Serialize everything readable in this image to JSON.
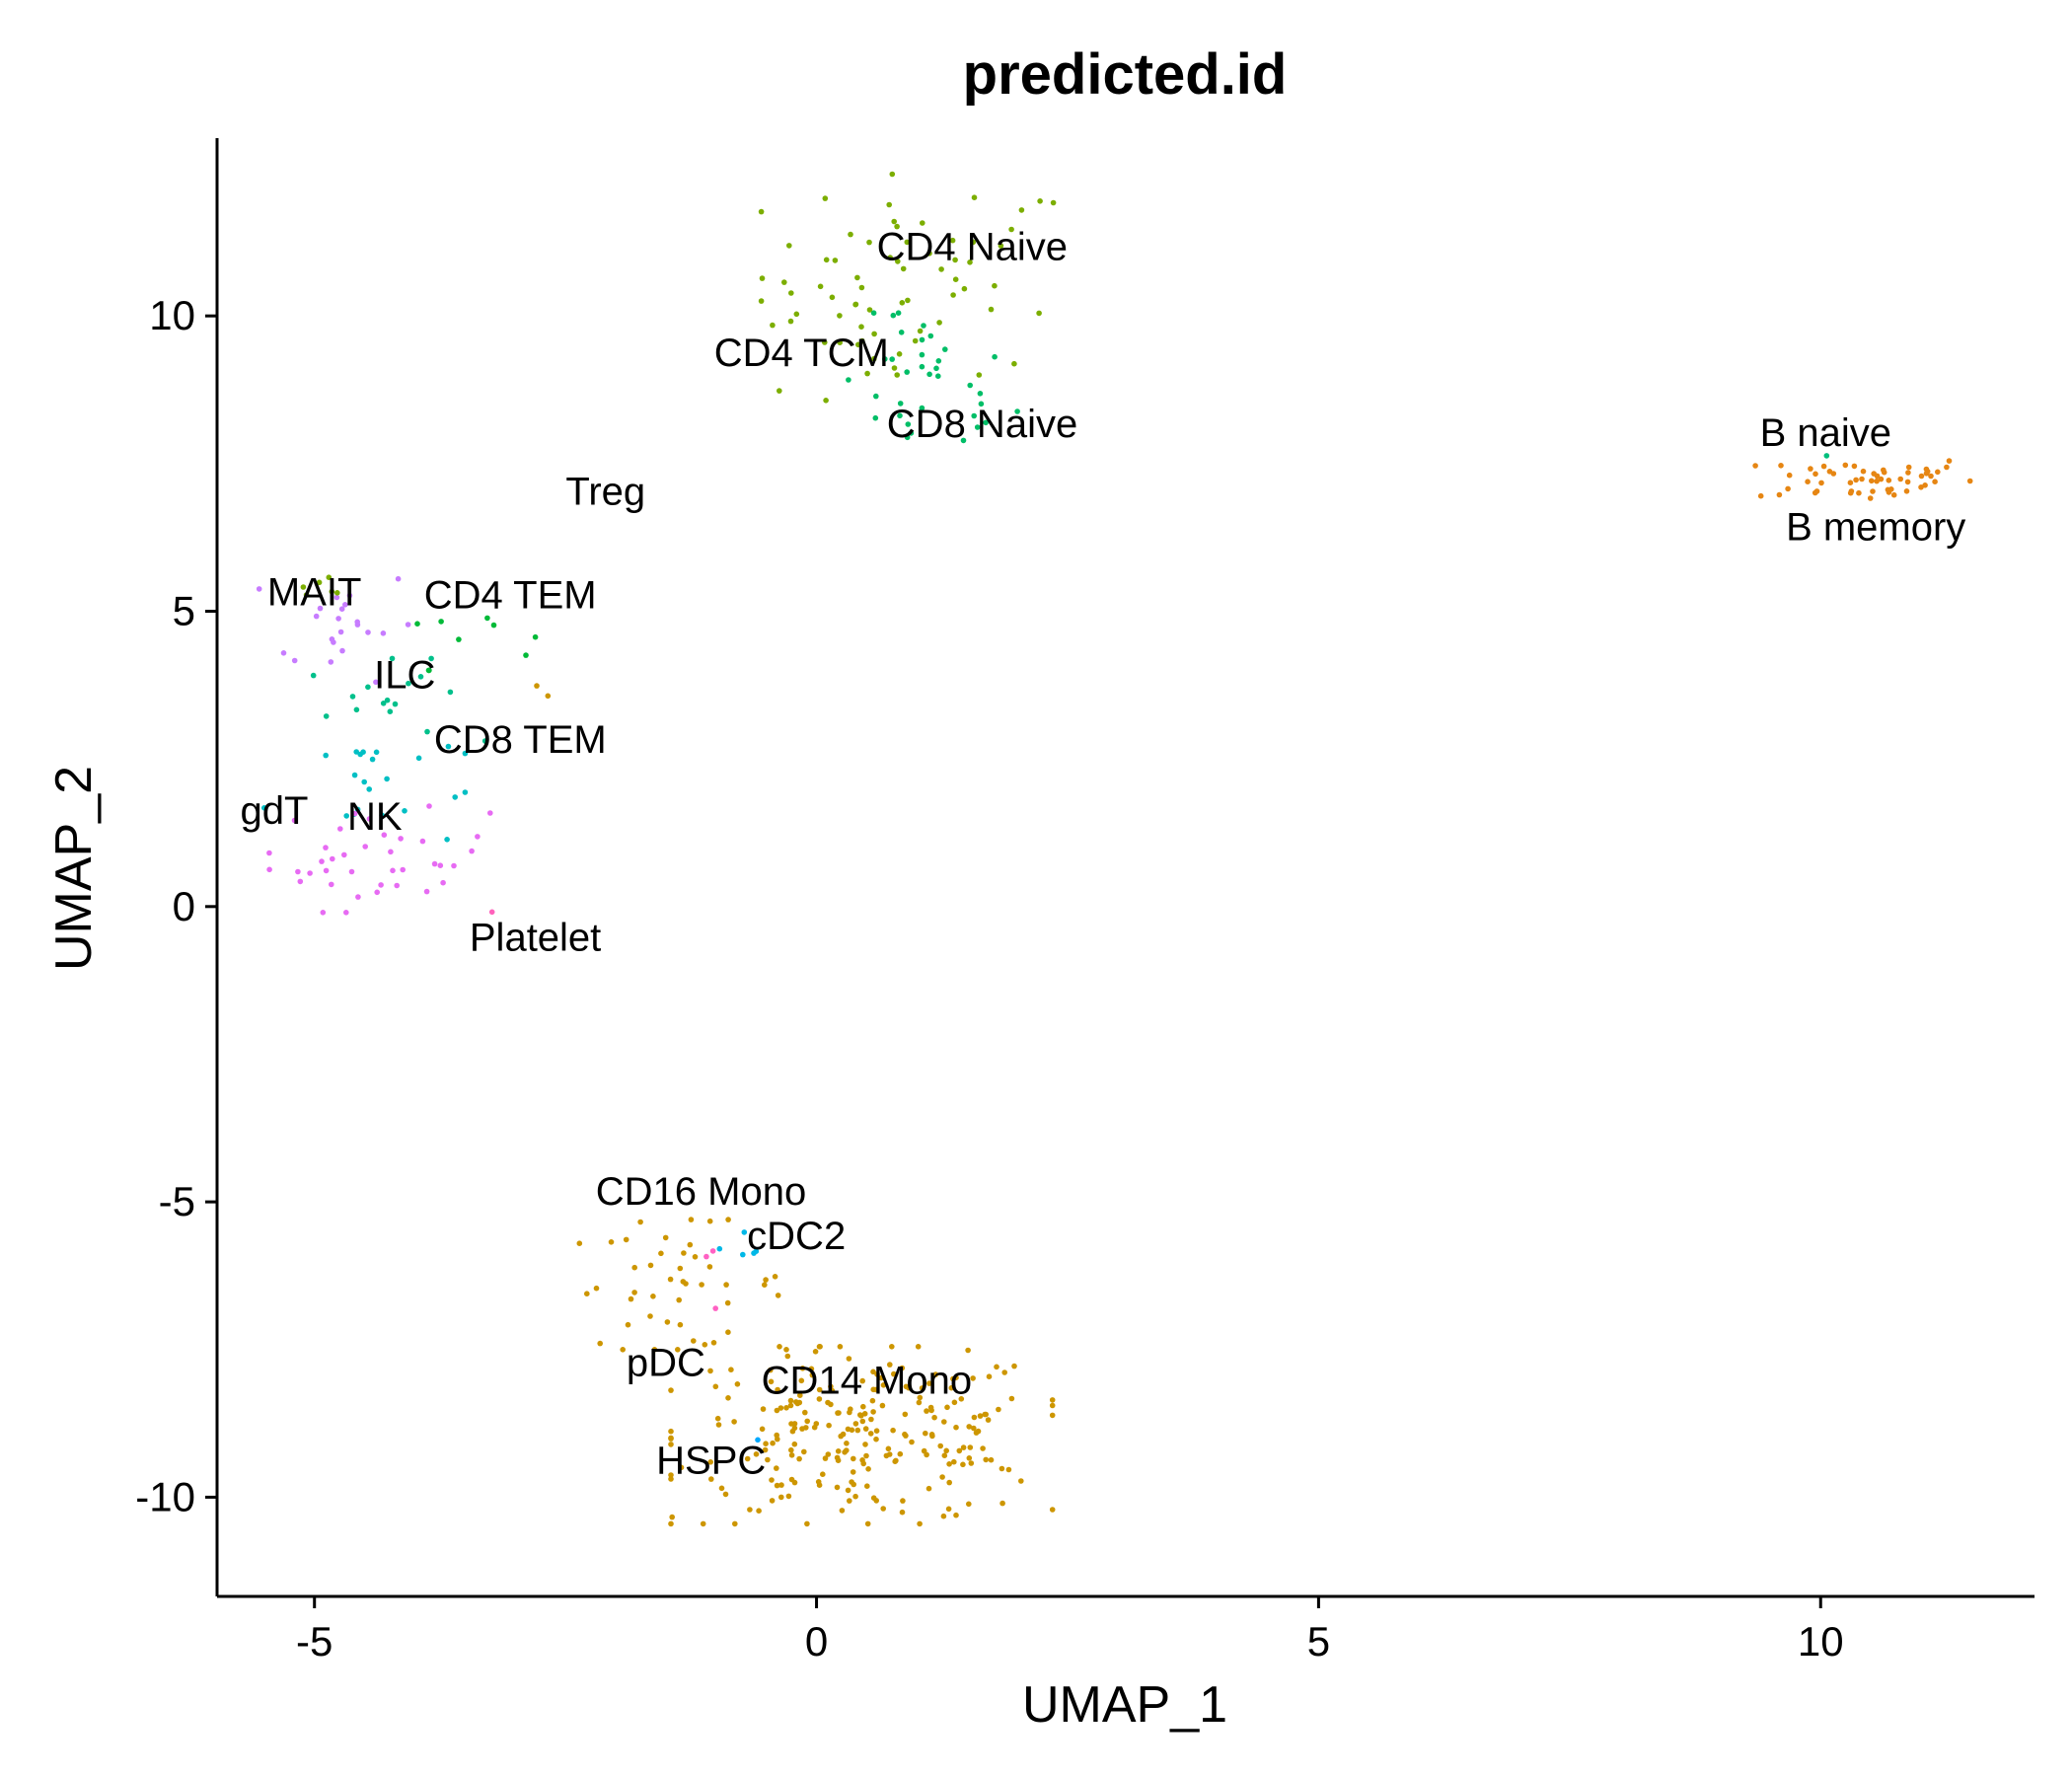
{
  "chart_data": {
    "type": "scatter",
    "title": "predicted.id",
    "xlabel": "UMAP_1",
    "ylabel": "UMAP_2",
    "xlim": [
      -5.97,
      12.13
    ],
    "ylim": [
      -11.68,
      13.01
    ],
    "xticks": [
      -5,
      0,
      5,
      10
    ],
    "yticks": [
      -10,
      -5,
      0,
      5,
      10
    ],
    "xtick_labels": [
      "-5",
      "0",
      "5",
      "10"
    ],
    "ytick_labels": [
      "-10",
      "-5",
      "0",
      "5",
      "10"
    ],
    "grid": false,
    "legend": "none",
    "cluster_labels": [
      {
        "text": "CD4 Naive",
        "x": 1.55,
        "y": 10.95
      },
      {
        "text": "CD4 TCM",
        "x": -0.15,
        "y": 9.15
      },
      {
        "text": "CD8 Naive",
        "x": 1.65,
        "y": 7.95
      },
      {
        "text": "B naive",
        "x": 10.05,
        "y": 7.8
      },
      {
        "text": "B memory",
        "x": 10.55,
        "y": 6.2
      },
      {
        "text": "Treg",
        "x": -2.1,
        "y": 6.8
      },
      {
        "text": "MAIT",
        "x": -5.0,
        "y": 5.1
      },
      {
        "text": "CD4 TEM",
        "x": -3.05,
        "y": 5.05
      },
      {
        "text": "ILC",
        "x": -4.1,
        "y": 3.7
      },
      {
        "text": "CD8 TEM",
        "x": -2.95,
        "y": 2.6
      },
      {
        "text": "gdT",
        "x": -5.4,
        "y": 1.4
      },
      {
        "text": "NK",
        "x": -4.4,
        "y": 1.3
      },
      {
        "text": "Platelet",
        "x": -2.8,
        "y": -0.75
      },
      {
        "text": "CD16 Mono",
        "x": -1.15,
        "y": -5.05
      },
      {
        "text": "cDC2",
        "x": -0.2,
        "y": -5.8
      },
      {
        "text": "pDC",
        "x": -1.5,
        "y": -7.95
      },
      {
        "text": "CD14 Mono",
        "x": 0.5,
        "y": -8.25
      },
      {
        "text": "HSPC",
        "x": -1.05,
        "y": -9.6
      }
    ],
    "series": [
      {
        "name": "CD4 Naive",
        "color": "#7CAE00",
        "center": [
          1.05,
          10.7
        ],
        "spread": [
          0.8,
          0.85
        ],
        "n": 55
      },
      {
        "name": "CD4 TCM",
        "color": "#7CAE00",
        "center": [
          0.1,
          9.4
        ],
        "spread": [
          0.5,
          0.55
        ],
        "n": 14
      },
      {
        "name": "CD8 Naive",
        "color": "#00BE67",
        "center": [
          1.1,
          8.75
        ],
        "spread": [
          0.45,
          0.65
        ],
        "n": 35
      },
      {
        "name": "B naive",
        "color": "#E68613",
        "center": [
          10.45,
          7.25
        ],
        "spread": [
          0.55,
          0.2
        ],
        "n": 55
      },
      {
        "name": "B memory",
        "color": "#00BF7D",
        "center": [
          10.1,
          7.65
        ],
        "spread": [
          0.02,
          0.02
        ],
        "n": 1
      },
      {
        "name": "Treg",
        "color": "#CD9600",
        "center": [
          -2.7,
          3.7
        ],
        "spread": [
          0.05,
          0.1
        ],
        "n": 2
      },
      {
        "name": "MAIT",
        "color": "#C77CFF",
        "center": [
          -4.75,
          4.8
        ],
        "spread": [
          0.4,
          0.5
        ],
        "n": 22
      },
      {
        "name": "CD4 TEM",
        "color": "#00BA38",
        "center": [
          -3.5,
          4.7
        ],
        "spread": [
          0.35,
          0.35
        ],
        "n": 9
      },
      {
        "name": "ILC",
        "color": "#00C08B",
        "center": [
          -4.2,
          3.5
        ],
        "spread": [
          0.45,
          0.35
        ],
        "n": 16
      },
      {
        "name": "CD8 TEM",
        "color": "#00BFC4",
        "center": [
          -4.5,
          2.1
        ],
        "spread": [
          0.5,
          0.6
        ],
        "n": 22
      },
      {
        "name": "gdT",
        "color": "#7CAE00",
        "center": [
          -4.9,
          5.4
        ],
        "spread": [
          0.25,
          0.1
        ],
        "n": 6
      },
      {
        "name": "NK",
        "color": "#E76BF3",
        "center": [
          -4.35,
          0.8
        ],
        "spread": [
          0.55,
          0.45
        ],
        "n": 38
      },
      {
        "name": "Platelet",
        "color": "#FF62BC",
        "center": [
          -3.25,
          -0.1
        ],
        "spread": [
          0.02,
          0.02
        ],
        "n": 1
      },
      {
        "name": "CD16 Mono",
        "color": "#CD9600",
        "center": [
          -1.4,
          -6.4
        ],
        "spread": [
          0.55,
          0.55
        ],
        "n": 45
      },
      {
        "name": "cDC2",
        "color": "#00B8E7",
        "center": [
          -0.8,
          -6.1
        ],
        "spread": [
          0.3,
          0.3
        ],
        "n": 5
      },
      {
        "name": "pDC",
        "color": "#FF61C3",
        "center": [
          -1.0,
          -6.8
        ],
        "spread": [
          0.25,
          0.6
        ],
        "n": 3
      },
      {
        "name": "CD14 Mono",
        "color": "#CD9600",
        "center": [
          0.45,
          -8.95
        ],
        "spread": [
          0.95,
          0.75
        ],
        "n": 240
      },
      {
        "name": "HSPC",
        "color": "#00A9FF",
        "center": [
          -0.6,
          -9.0
        ],
        "spread": [
          0.05,
          0.05
        ],
        "n": 1
      }
    ]
  }
}
